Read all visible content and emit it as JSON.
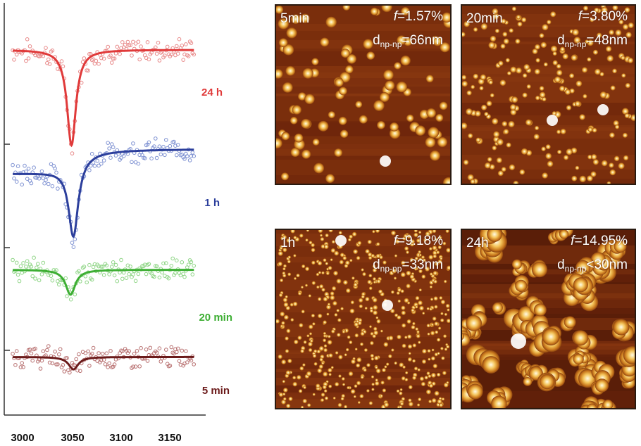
{
  "chart_data": {
    "type": "line",
    "title": "",
    "xlabel": "",
    "ylabel": "",
    "x_ticks": [
      "3000",
      "3050",
      "3100",
      "3150"
    ],
    "xlim": [
      2985,
      3195
    ],
    "ylim_offset_units": [
      0,
      100
    ],
    "series": [
      {
        "name": "24 h",
        "color": "#e03a3a",
        "points_color": "#e88a8a",
        "center": 3050,
        "width": 5.5,
        "depth": 23,
        "baseline": 88,
        "asym": 0
      },
      {
        "name": "1 h",
        "color": "#2c3f9c",
        "points_color": "#7f92d2",
        "center": 3052,
        "width": 6,
        "depth": 18,
        "baseline": 61,
        "asym": 1
      },
      {
        "name": "20 min",
        "color": "#3dae33",
        "points_color": "#8fd586",
        "center": 3049,
        "width": 6,
        "depth": 6,
        "baseline": 35,
        "asym": 0
      },
      {
        "name": "5 min",
        "color": "#6b1a1a",
        "points_color": "#b87070",
        "center": 3052,
        "width": 6,
        "depth": 3,
        "baseline": 14,
        "asym": 0
      }
    ]
  },
  "panels": [
    {
      "time": "5min",
      "f_label": "f",
      "f_value": "=1.57%",
      "d_label": "d",
      "d_sub": "np-np",
      "d_value": "=66nm"
    },
    {
      "time": "20min",
      "f_label": "f",
      "f_value": "=3.80%",
      "d_label": "d",
      "d_sub": "np-np",
      "d_value": "=48nm"
    },
    {
      "time": "1h",
      "f_label": "f",
      "f_value": "=9.18%",
      "d_label": "d",
      "d_sub": "np-np",
      "d_value": "=33nm"
    },
    {
      "time": "24h",
      "f_label": "f",
      "f_value": "=14.95%",
      "d_label": "d",
      "d_sub": "np-np",
      "d_value": "<30nm"
    }
  ]
}
